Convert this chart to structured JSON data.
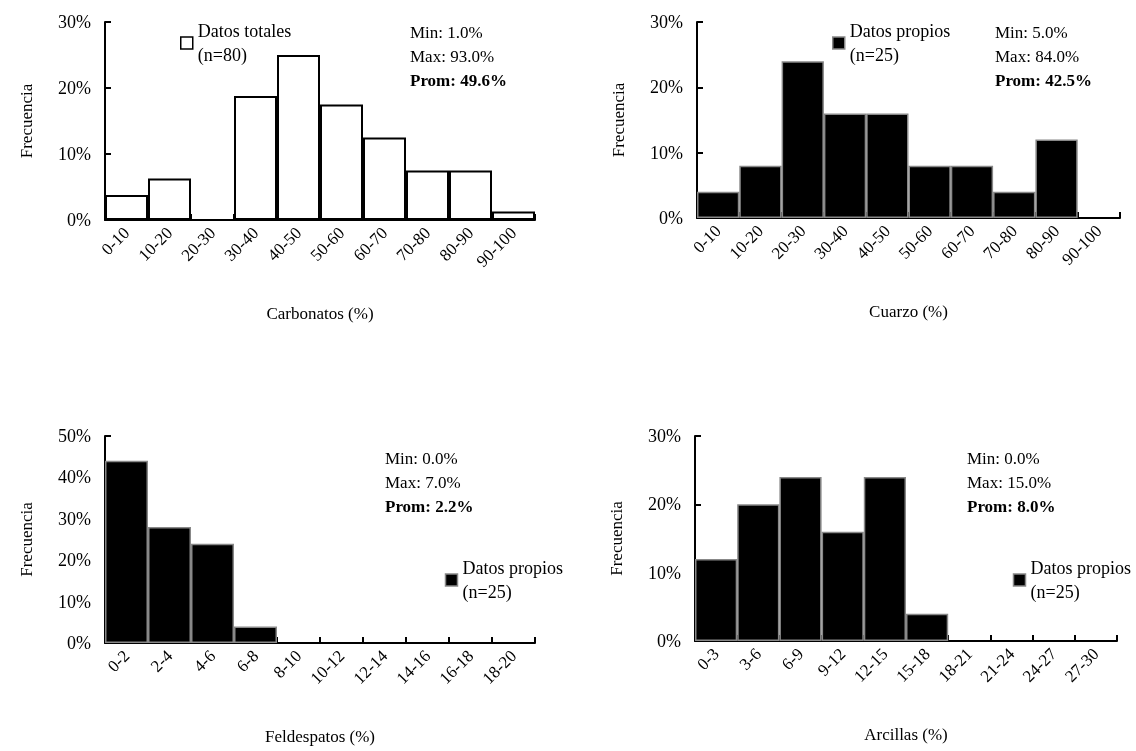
{
  "chart_data": [
    {
      "type": "bar",
      "xlabel": "Carbonatos (%)",
      "ylabel": "Frecuencia",
      "categories": [
        "0-10",
        "10-20",
        "20-30",
        "30-40",
        "40-50",
        "50-60",
        "60-70",
        "70-80",
        "80-90",
        "90-100"
      ],
      "series": [
        {
          "name": "Datos totales (n=80)",
          "color": "#ffffff",
          "values": [
            3.8,
            6.3,
            0,
            18.8,
            25,
            17.5,
            12.5,
            7.5,
            7.5,
            1.3
          ]
        }
      ],
      "ylim": [
        0,
        30
      ],
      "yticks": [
        {
          "value": 0,
          "label": "0%"
        },
        {
          "value": 10,
          "label": "10%"
        },
        {
          "value": 20,
          "label": "20%"
        },
        {
          "value": 30,
          "label": "30%"
        }
      ],
      "annotations": [
        "Min: 1.0%",
        "Max: 93.0%",
        "Prom: 49.6%"
      ],
      "grid": false,
      "legend": "top"
    },
    {
      "type": "bar",
      "xlabel": "Cuarzo (%)",
      "ylabel": "Frecuencia",
      "categories": [
        "0-10",
        "10-20",
        "20-30",
        "30-40",
        "40-50",
        "50-60",
        "60-70",
        "70-80",
        "80-90",
        "90-100"
      ],
      "series": [
        {
          "name": "Datos propios (n=25)",
          "color": "#000000",
          "values": [
            4,
            8,
            24,
            16,
            16,
            8,
            8,
            4,
            12,
            0
          ]
        }
      ],
      "ylim": [
        0,
        30
      ],
      "yticks": [
        {
          "value": 0,
          "label": "0%"
        },
        {
          "value": 10,
          "label": "10%"
        },
        {
          "value": 20,
          "label": "20%"
        },
        {
          "value": 30,
          "label": "30%"
        }
      ],
      "annotations": [
        "Min: 5.0%",
        "Max: 84.0%",
        "Prom: 42.5%"
      ],
      "grid": false,
      "legend": "top"
    },
    {
      "type": "bar",
      "xlabel": "Feldespatos (%)",
      "ylabel": "Frecuencia",
      "categories": [
        "0-2",
        "2-4",
        "4-6",
        "6-8",
        "8-10",
        "10-12",
        "12-14",
        "14-16",
        "16-18",
        "18-20"
      ],
      "series": [
        {
          "name": "Datos propios (n=25)",
          "color": "#000000",
          "values": [
            44,
            28,
            24,
            4,
            0,
            0,
            0,
            0,
            0,
            0
          ]
        }
      ],
      "ylim": [
        0,
        50
      ],
      "yticks": [
        {
          "value": 0,
          "label": "0%"
        },
        {
          "value": 10,
          "label": "10%"
        },
        {
          "value": 20,
          "label": "20%"
        },
        {
          "value": 30,
          "label": "30%"
        },
        {
          "value": 40,
          "label": "40%"
        },
        {
          "value": 50,
          "label": "50%"
        }
      ],
      "annotations": [
        "Min: 0.0%",
        "Max: 7.0%",
        "Prom: 2.2%"
      ],
      "grid": false,
      "legend": "right"
    },
    {
      "type": "bar",
      "xlabel": "Arcillas (%)",
      "ylabel": "Frecuencia",
      "categories": [
        "0-3",
        "3-6",
        "6-9",
        "9-12",
        "12-15",
        "15-18",
        "18-21",
        "21-24",
        "24-27",
        "27-30"
      ],
      "series": [
        {
          "name": "Datos propios (n=25)",
          "color": "#000000",
          "values": [
            12,
            20,
            24,
            16,
            24,
            4,
            0,
            0,
            0,
            0
          ]
        }
      ],
      "ylim": [
        0,
        30
      ],
      "yticks": [
        {
          "value": 0,
          "label": "0%"
        },
        {
          "value": 10,
          "label": "10%"
        },
        {
          "value": 20,
          "label": "20%"
        },
        {
          "value": 30,
          "label": "30%"
        }
      ],
      "annotations": [
        "Min: 0.0%",
        "Max: 15.0%",
        "Prom: 8.0%"
      ],
      "grid": false,
      "legend": "right"
    }
  ]
}
